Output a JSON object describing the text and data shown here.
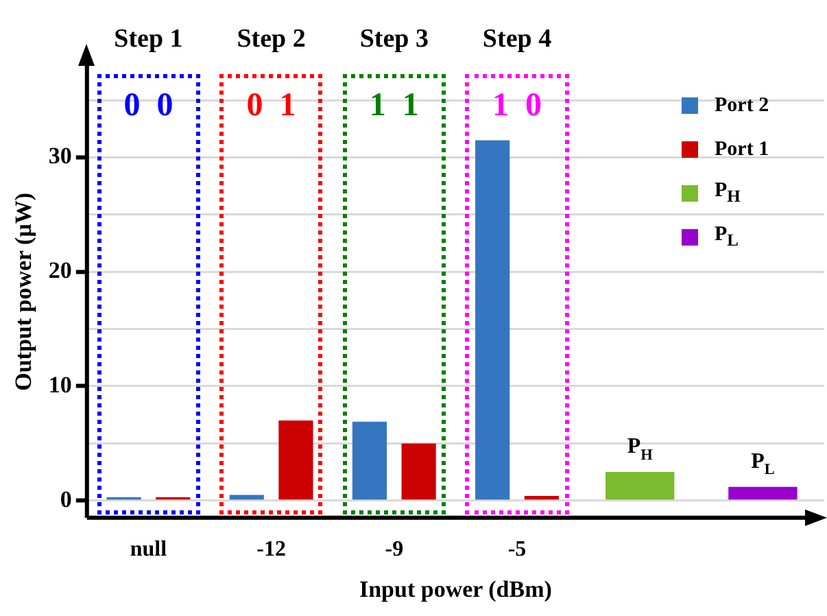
{
  "chart_data": {
    "type": "bar",
    "xlabel": "Input power (dBm)",
    "ylabel": "Output power (μW)",
    "categories": [
      "null",
      "-12",
      "-9",
      "-5",
      null,
      null
    ],
    "series": [
      {
        "name": "Port 2",
        "color": "#3476c0",
        "values": [
          0.3,
          0.5,
          6.9,
          31.5,
          null,
          null
        ]
      },
      {
        "name": "Port 1",
        "color": "#cc0000",
        "values": [
          0.3,
          7,
          5,
          0.4,
          null,
          null
        ]
      },
      {
        "name": "P$_{H}$",
        "color": "#7cbb30",
        "values": [
          null,
          null,
          null,
          null,
          2.5,
          null
        ]
      },
      {
        "name": "P$_{L}$",
        "color": "#9900cc",
        "values": [
          null,
          null,
          null,
          null,
          null,
          1.2
        ]
      }
    ],
    "ylim": [
      -1.5,
      38
    ],
    "yticks": [
      0,
      {
        "value": 5,
        "label": null
      },
      10,
      {
        "value": 15,
        "label": null
      },
      20,
      {
        "value": 25,
        "label": null
      },
      30,
      {
        "value": 35,
        "label": null
      }
    ],
    "grid": "y",
    "legend": "top right",
    "annotations": [
      "Step 1",
      "0  0",
      "Step 2",
      "0  1",
      "Step 3",
      "1  1",
      "Step 4",
      "1  0"
    ]
  }
}
